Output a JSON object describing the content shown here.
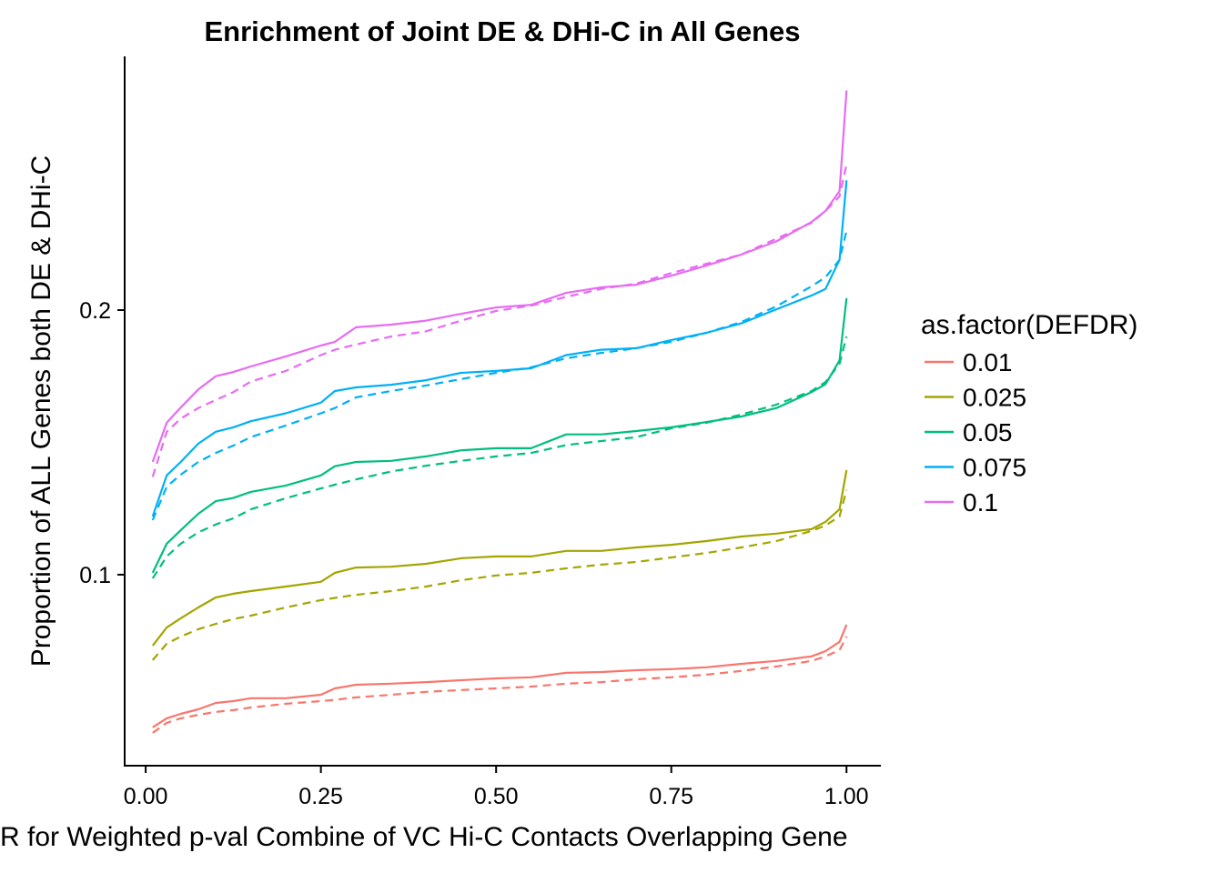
{
  "chart_data": {
    "type": "line",
    "title": "Enrichment of Joint DE & DHi-C in All Genes",
    "xlabel": "R for Weighted p-val Combine of VC Hi-C Contacts Overlapping Gene",
    "ylabel": "Proportion of ALL Genes both DE & DHi-C",
    "xlim": [
      -0.03,
      1.049
    ],
    "ylim": [
      0.0278,
      0.2959
    ],
    "x_ticks": [
      0.0,
      0.25,
      0.5,
      0.75,
      1.0
    ],
    "x_tick_labels": [
      "0.00",
      "0.25",
      "0.50",
      "0.75",
      "1.00"
    ],
    "y_ticks": [
      0.1,
      0.2
    ],
    "y_tick_labels": [
      "0.1",
      "0.2"
    ],
    "grid": false,
    "legend": {
      "title": "as.factor(DEFDR)",
      "position": "right"
    },
    "x": [
      0.01,
      0.03,
      0.05,
      0.075,
      0.1,
      0.125,
      0.15,
      0.2,
      0.25,
      0.27,
      0.3,
      0.35,
      0.4,
      0.45,
      0.5,
      0.55,
      0.6,
      0.65,
      0.7,
      0.75,
      0.8,
      0.85,
      0.9,
      0.95,
      0.97,
      0.99,
      1.0
    ],
    "series": [
      {
        "name": "0.01",
        "color": "#F8766D",
        "solid": [
          0.0423,
          0.0457,
          0.0474,
          0.0491,
          0.0515,
          0.0522,
          0.0533,
          0.0533,
          0.0546,
          0.057,
          0.0584,
          0.0588,
          0.0594,
          0.0601,
          0.0608,
          0.0612,
          0.0629,
          0.0632,
          0.0639,
          0.0643,
          0.065,
          0.0663,
          0.0674,
          0.0691,
          0.0711,
          0.0746,
          0.0811
        ],
        "dashed": [
          0.0402,
          0.044,
          0.0457,
          0.047,
          0.0481,
          0.0488,
          0.0498,
          0.0512,
          0.0522,
          0.0527,
          0.0536,
          0.0546,
          0.0557,
          0.0564,
          0.057,
          0.0577,
          0.0588,
          0.0594,
          0.0605,
          0.0612,
          0.0622,
          0.0636,
          0.0653,
          0.0674,
          0.0691,
          0.0715,
          0.0766
        ]
      },
      {
        "name": "0.025",
        "color": "#A3A500",
        "solid": [
          0.0732,
          0.08,
          0.0835,
          0.0876,
          0.0914,
          0.0928,
          0.0938,
          0.0955,
          0.0973,
          0.1007,
          0.1027,
          0.103,
          0.1041,
          0.1062,
          0.1069,
          0.1069,
          0.109,
          0.109,
          0.1103,
          0.1113,
          0.1127,
          0.1144,
          0.1155,
          0.1172,
          0.12,
          0.1247,
          0.1395
        ],
        "dashed": [
          0.0677,
          0.0739,
          0.0766,
          0.0794,
          0.0814,
          0.0832,
          0.0845,
          0.0876,
          0.0904,
          0.0912,
          0.0924,
          0.0938,
          0.0955,
          0.0979,
          0.0997,
          0.1007,
          0.1024,
          0.1038,
          0.1048,
          0.1065,
          0.1082,
          0.1103,
          0.1127,
          0.1165,
          0.1186,
          0.122,
          0.132
        ]
      },
      {
        "name": "0.05",
        "color": "#00BF7D",
        "solid": [
          0.1007,
          0.1117,
          0.1168,
          0.123,
          0.1278,
          0.129,
          0.1313,
          0.1337,
          0.1375,
          0.141,
          0.1426,
          0.143,
          0.1447,
          0.147,
          0.1478,
          0.1478,
          0.153,
          0.153,
          0.1543,
          0.1557,
          0.1577,
          0.1598,
          0.163,
          0.169,
          0.172,
          0.181,
          0.2045
        ],
        "dashed": [
          0.0986,
          0.1069,
          0.1117,
          0.116,
          0.119,
          0.1213,
          0.1247,
          0.1289,
          0.1326,
          0.134,
          0.136,
          0.139,
          0.1412,
          0.143,
          0.1447,
          0.146,
          0.149,
          0.1505,
          0.152,
          0.1553,
          0.1574,
          0.1605,
          0.1643,
          0.1694,
          0.1728,
          0.1797,
          0.19
        ]
      },
      {
        "name": "0.075",
        "color": "#00B0F6",
        "solid": [
          0.122,
          0.1375,
          0.1426,
          0.1495,
          0.154,
          0.1557,
          0.158,
          0.161,
          0.165,
          0.1694,
          0.1708,
          0.1718,
          0.1735,
          0.1763,
          0.177,
          0.178,
          0.183,
          0.185,
          0.1856,
          0.1887,
          0.1914,
          0.195,
          0.2003,
          0.2055,
          0.208,
          0.219,
          0.249
        ],
        "dashed": [
          0.1206,
          0.1333,
          0.1378,
          0.1426,
          0.146,
          0.1488,
          0.152,
          0.1564,
          0.161,
          0.163,
          0.167,
          0.1694,
          0.1715,
          0.1739,
          0.1763,
          0.1784,
          0.1818,
          0.1838,
          0.1856,
          0.188,
          0.1914,
          0.1955,
          0.2014,
          0.209,
          0.2124,
          0.219,
          0.23
        ]
      },
      {
        "name": "0.1",
        "color": "#E76BF3",
        "solid": [
          0.1426,
          0.1574,
          0.1632,
          0.17,
          0.175,
          0.1766,
          0.1787,
          0.1825,
          0.1866,
          0.188,
          0.1935,
          0.1945,
          0.196,
          0.1986,
          0.201,
          0.202,
          0.2065,
          0.2086,
          0.2096,
          0.213,
          0.2168,
          0.221,
          0.226,
          0.2333,
          0.2375,
          0.245,
          0.283
        ],
        "dashed": [
          0.137,
          0.154,
          0.159,
          0.163,
          0.166,
          0.169,
          0.173,
          0.177,
          0.183,
          0.185,
          0.187,
          0.19,
          0.192,
          0.196,
          0.1997,
          0.2017,
          0.205,
          0.208,
          0.21,
          0.214,
          0.2175,
          0.221,
          0.227,
          0.233,
          0.2375,
          0.243,
          0.255
        ]
      }
    ]
  }
}
